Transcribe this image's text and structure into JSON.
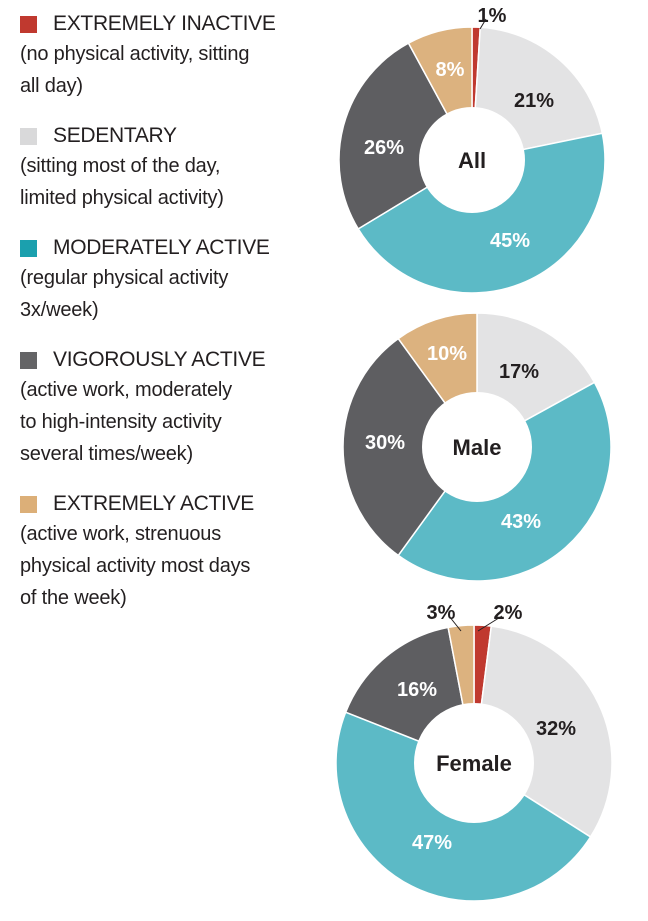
{
  "legend": [
    {
      "label": "EXTREMELY INACTIVE",
      "description": "(no physical activity, sitting\nall day)",
      "color": "#c0392f"
    },
    {
      "label": "SEDENTARY",
      "description": "(sitting most of the day,\nlimited physical activity)",
      "color": "#d9d9da"
    },
    {
      "label": "MODERATELY ACTIVE",
      "description": "(regular physical activity\n3x/week)",
      "color": "#1ba0ae"
    },
    {
      "label": "VIGOROUSLY ACTIVE",
      "description": "(active work, moderately\nto high-intensity activity\nseveral times/week)",
      "color": "#646466"
    },
    {
      "label": "EXTREMELY ACTIVE",
      "description": "(active work, strenuous\nphysical activity most days\nof the week)",
      "color": "#dcaf78"
    }
  ],
  "colors": {
    "extremely_inactive": "#c0392f",
    "sedentary": "#e3e3e4",
    "moderately_active": "#5cbac6",
    "vigorously_active": "#5e5e61",
    "extremely_active": "#dcb27f"
  },
  "chart_data": [
    {
      "type": "pie",
      "title": "All",
      "categories": [
        "EXTREMELY INACTIVE",
        "SEDENTARY",
        "MODERATELY ACTIVE",
        "VIGOROUSLY ACTIVE",
        "EXTREMELY ACTIVE"
      ],
      "values": [
        1,
        21,
        45,
        26,
        8
      ],
      "labels": [
        "1%",
        "21%",
        "45%",
        "26%",
        "8%"
      ]
    },
    {
      "type": "pie",
      "title": "Male",
      "categories": [
        "SEDENTARY",
        "MODERATELY ACTIVE",
        "VIGOROUSLY ACTIVE",
        "EXTREMELY ACTIVE"
      ],
      "values": [
        17,
        43,
        30,
        10
      ],
      "labels": [
        "17%",
        "43%",
        "30%",
        "10%"
      ]
    },
    {
      "type": "pie",
      "title": "Female",
      "categories": [
        "EXTREMELY INACTIVE",
        "SEDENTARY",
        "MODERATELY ACTIVE",
        "VIGOROUSLY ACTIVE",
        "EXTREMELY ACTIVE"
      ],
      "values": [
        2,
        32,
        47,
        16,
        3
      ],
      "labels": [
        "2%",
        "32%",
        "47%",
        "16%",
        "3%"
      ]
    }
  ]
}
